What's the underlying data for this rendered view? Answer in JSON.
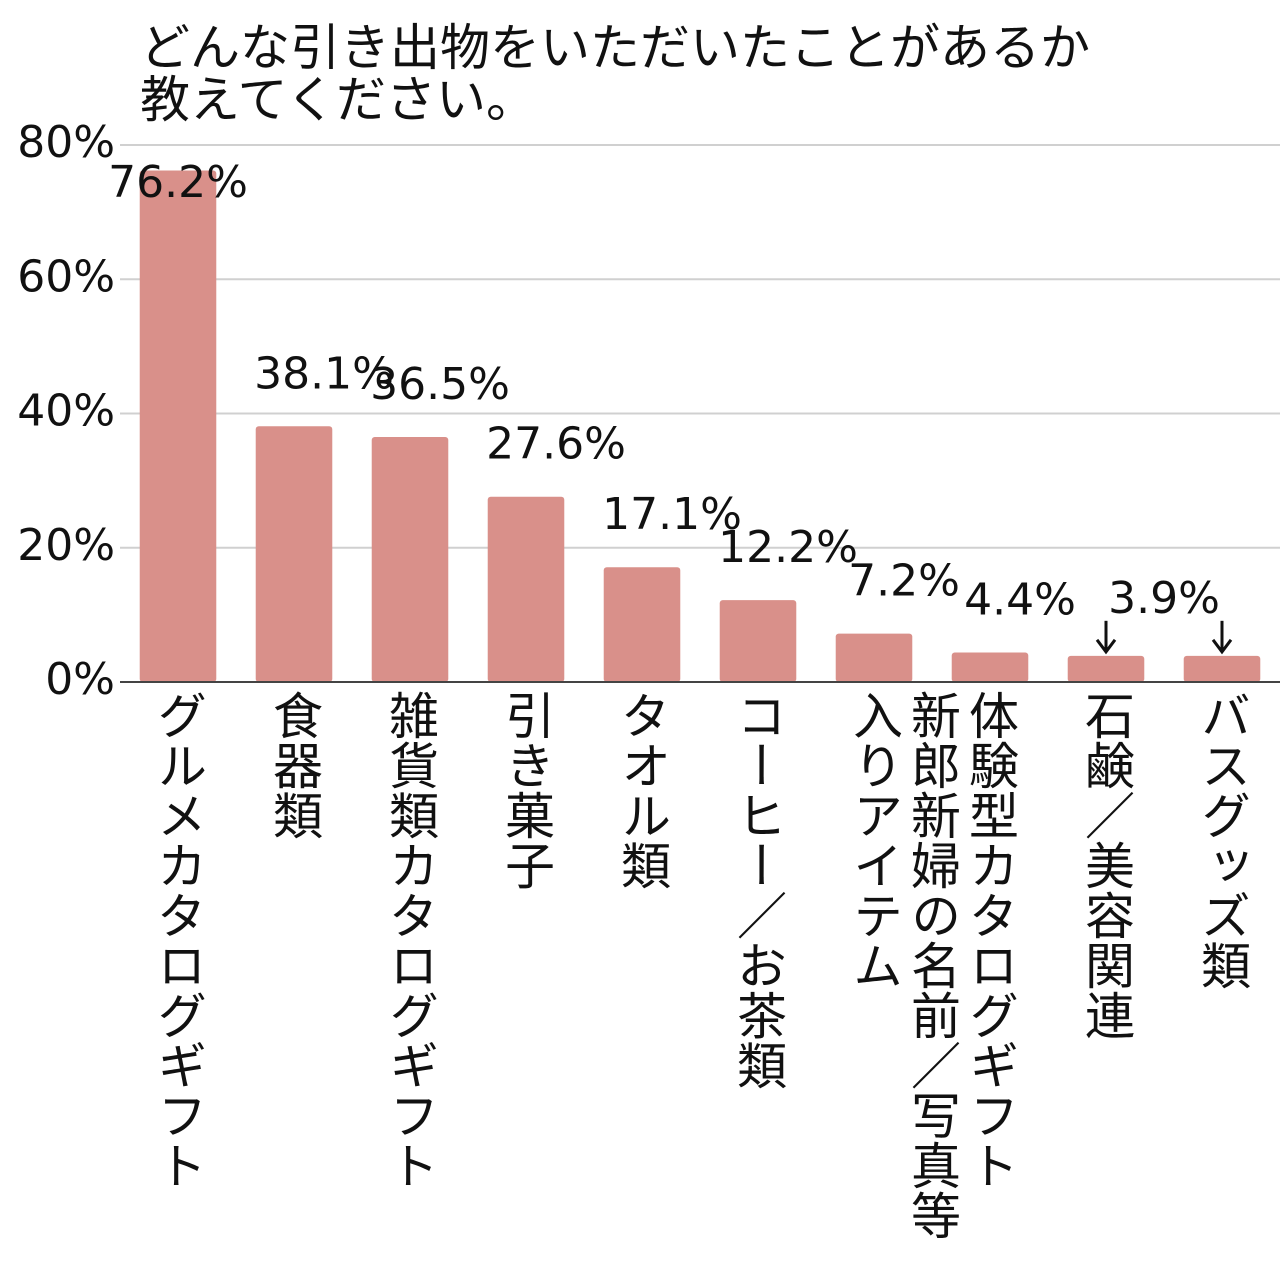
{
  "chart_data": {
    "type": "bar",
    "title": "どんな引き出物をいただいたことがあるか教えてください。",
    "categories": [
      "グルメカタログギフト",
      "食器類",
      "雑貨類カタログギフト",
      "引き菓子",
      "タオル類",
      "コーヒー／お茶類",
      "新郎新婦の名前／写真等入りアイテム",
      "体験型カタログギフト",
      "石鹸／美容関連",
      "バスグッズ類"
    ],
    "values": [
      76.2,
      38.1,
      36.5,
      27.6,
      17.1,
      12.2,
      7.2,
      4.4,
      3.9,
      3.9
    ],
    "value_labels": [
      "76.2%",
      "38.1%",
      "36.5%",
      "27.6%",
      "17.1%",
      "12.2%",
      "7.2%",
      "4.4%",
      "3.9%",
      null
    ],
    "color": "#d9908a",
    "ylim": [
      0,
      80
    ],
    "yticks": [
      {
        "value": 0,
        "label": "0%"
      },
      {
        "value": 20,
        "label": "20%"
      },
      {
        "value": 40,
        "label": "40%"
      },
      {
        "value": 60,
        "label": "60%"
      },
      {
        "value": 80,
        "label": "80%"
      }
    ],
    "grid": true
  }
}
